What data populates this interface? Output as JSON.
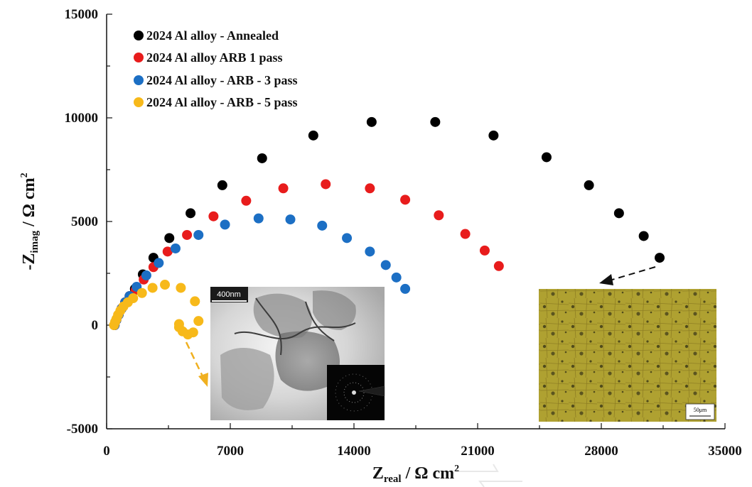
{
  "chart_data": {
    "type": "scatter",
    "xlabel": "Zreal / Ω cm2",
    "ylabel": "-Zimag / Ω cm2",
    "xlabel_parts": {
      "main": "Z",
      "sub": "real",
      "unit": " / Ω cm",
      "sup": "2"
    },
    "ylabel_parts": {
      "main": "-Z",
      "sub": "imag",
      "unit": " / Ω cm",
      "sup": "2"
    },
    "xlim": [
      0,
      35000
    ],
    "ylim": [
      -5000,
      15000
    ],
    "x_ticks": [
      0,
      7000,
      14000,
      21000,
      28000,
      35000
    ],
    "y_ticks": [
      -5000,
      0,
      5000,
      10000,
      15000
    ],
    "grid": false,
    "legend_position": "top-left",
    "series": [
      {
        "name": "2024 Al alloy - Annealed",
        "color": "#000000",
        "x": [
          450,
          550,
          680,
          850,
          1050,
          1300,
          1600,
          2050,
          2650,
          3550,
          4750,
          6550,
          8800,
          11700,
          15000,
          18600,
          21900,
          24900,
          27300,
          29000,
          30400,
          31300
        ],
        "y": [
          0,
          250,
          500,
          800,
          1100,
          1400,
          1750,
          2450,
          3250,
          4200,
          5400,
          6750,
          8050,
          9150,
          9800,
          9800,
          9150,
          8100,
          6750,
          5400,
          4300,
          3250
        ]
      },
      {
        "name": "2024 Al alloy   ARB   1 pass",
        "color": "#e81c1c",
        "x": [
          450,
          550,
          680,
          850,
          1050,
          1300,
          1650,
          2100,
          2650,
          3450,
          4550,
          6050,
          7900,
          10000,
          12400,
          14900,
          16900,
          18800,
          20300,
          21400,
          22200
        ],
        "y": [
          0,
          250,
          500,
          800,
          1100,
          1400,
          1700,
          2200,
          2800,
          3550,
          4350,
          5250,
          6000,
          6600,
          6800,
          6600,
          6050,
          5300,
          4400,
          3600,
          2850
        ]
      },
      {
        "name": "2024 Al alloy - ARB - 3 pass",
        "color": "#1c6fc4",
        "x": [
          450,
          550,
          680,
          850,
          1050,
          1300,
          1700,
          2250,
          2950,
          3900,
          5200,
          6700,
          8600,
          10400,
          12200,
          13600,
          14900,
          15800,
          16400,
          16900
        ],
        "y": [
          0,
          250,
          500,
          800,
          1100,
          1400,
          1850,
          2400,
          3000,
          3700,
          4350,
          4850,
          5150,
          5100,
          4800,
          4200,
          3550,
          2900,
          2300,
          1750
        ]
      },
      {
        "name": "2024 Al alloy - ARB - 5 pass",
        "color": "#f7b91a",
        "x": [
          420,
          480,
          560,
          650,
          780,
          950,
          1200,
          1500,
          2000,
          2600,
          3300,
          4200,
          5000,
          5200,
          4900,
          4600,
          4300,
          4100,
          4100
        ],
        "y": [
          0,
          150,
          300,
          500,
          700,
          900,
          1100,
          1300,
          1550,
          1800,
          1950,
          1800,
          1150,
          200,
          -350,
          -450,
          -300,
          -100,
          50
        ]
      }
    ]
  },
  "insets": {
    "tem": {
      "scale_label": "400nm"
    },
    "optical": {
      "scale_label": "50μm"
    }
  }
}
